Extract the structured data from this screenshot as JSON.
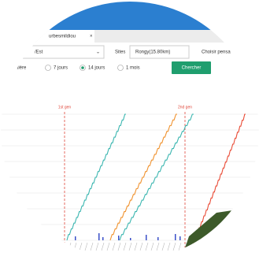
{
  "tab": {
    "label": "urbesmildiou"
  },
  "filters": {
    "region": "/Est",
    "sites_label": "Sites",
    "site": "Rongy(15.80km)",
    "choose": "Choisir pensa"
  },
  "periods": [
    "n entière",
    "7 jours",
    "14 jours",
    "1 mois"
  ],
  "button": "Chercher",
  "annotations": [
    "1st gen",
    "2nd gen"
  ]
}
